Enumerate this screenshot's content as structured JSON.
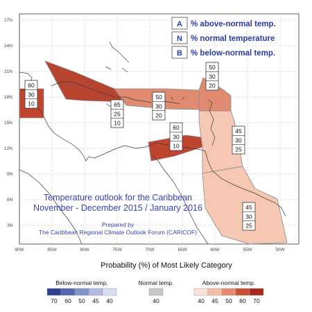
{
  "map": {
    "latitude_labels": [
      "27N",
      "24N",
      "21N",
      "18N",
      "15N",
      "12N",
      "9N",
      "6N",
      "3N"
    ],
    "longitude_labels": [
      "90W",
      "85W",
      "80W",
      "75W",
      "70W",
      "65W",
      "60W",
      "55W",
      "50W"
    ]
  },
  "key": [
    {
      "letter": "A",
      "text": "% above-normal temp."
    },
    {
      "letter": "N",
      "text": "% normal temperature"
    },
    {
      "letter": "B",
      "text": "% below-normal temp."
    }
  ],
  "title_lines": [
    "Temperature outlook for the Caribbean",
    "November - December 2015 / January 2016"
  ],
  "credit_lines": [
    "Prepared by",
    "The Caribbean Regional Climate Outlook Forum (CARICOF)"
  ],
  "regions": [
    {
      "probabilities": [
        60,
        30,
        10
      ],
      "color": "#c0452f"
    },
    {
      "probabilities": [
        65,
        25,
        10
      ],
      "color": "#b6442e"
    },
    {
      "probabilities": [
        50,
        30,
        20
      ],
      "color": "#e08a6f"
    },
    {
      "probabilities": [
        50,
        30,
        20
      ],
      "color": "#e08a6f"
    },
    {
      "probabilities": [
        60,
        30,
        10
      ],
      "color": "#c0452f"
    },
    {
      "probabilities": [
        45,
        30,
        25
      ],
      "color": "#f6c7b3"
    },
    {
      "probabilities": [
        45,
        30,
        25
      ],
      "color": "#f6c7b3"
    }
  ],
  "legend": {
    "caption": "Probability (%) of Most Likely Category",
    "below": {
      "title": "Below-normal temp.",
      "ticks": [
        "70",
        "60",
        "50",
        "45",
        "40"
      ],
      "colors": [
        "#2f3f8f",
        "#5367b0",
        "#8293c9",
        "#afbbe0",
        "#d9def2"
      ]
    },
    "normal": {
      "title": "Normal temp.",
      "ticks": [
        "40"
      ],
      "colors": [
        "#c8c8c8"
      ]
    },
    "above": {
      "title": "Above-normal temp.",
      "ticks": [
        "40",
        "45",
        "50",
        "60",
        "70"
      ],
      "colors": [
        "#fbe1d6",
        "#f6bea6",
        "#e78a6e",
        "#c94f37",
        "#a82a1e"
      ]
    }
  }
}
